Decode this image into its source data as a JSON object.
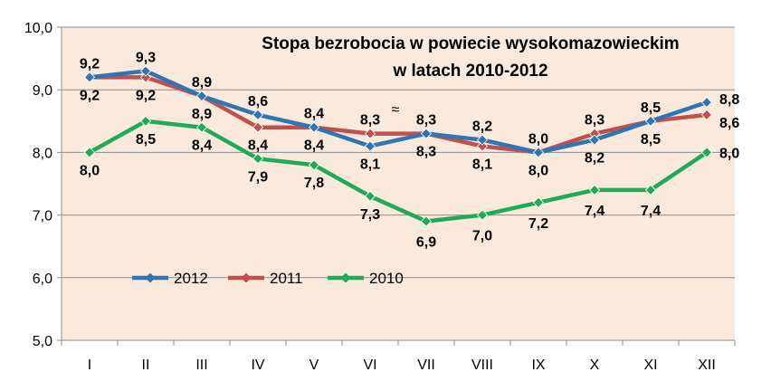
{
  "chart_data": {
    "type": "line",
    "title_lines": [
      "Stopa bezrobocia w powiecie wysokomazowieckim",
      "w latach 2010-2012"
    ],
    "categories": [
      "I",
      "II",
      "III",
      "IV",
      "V",
      "VI",
      "VII",
      "VIII",
      "IX",
      "X",
      "XI",
      "XII"
    ],
    "ylim": [
      5.0,
      10.0
    ],
    "yticks": [
      "5,0",
      "6,0",
      "7,0",
      "8,0",
      "9,0",
      "10,0"
    ],
    "grid": true,
    "legend_position": "bottom-left",
    "series": [
      {
        "name": "2012",
        "color": "#2e75b6",
        "values": [
          9.2,
          9.3,
          8.9,
          8.6,
          8.4,
          8.1,
          8.3,
          8.2,
          8.0,
          8.2,
          8.5,
          8.8
        ],
        "labels": [
          "9,2",
          "9,3",
          "8,9",
          "8,6",
          "8,4",
          "8,1",
          "8,3",
          "8,2",
          "8,0",
          "8,2",
          "8,5",
          "8,8"
        ]
      },
      {
        "name": "2011",
        "color": "#c0504d",
        "values": [
          9.2,
          9.2,
          8.9,
          8.4,
          8.4,
          8.3,
          8.3,
          8.1,
          8.0,
          8.3,
          8.5,
          8.6
        ],
        "labels": [
          "9,2",
          "9,2",
          "8,9",
          "8,4",
          "8,4",
          "8,3",
          "8,3",
          "8,1",
          "8,0",
          "8,3",
          "8,5",
          "8,6"
        ]
      },
      {
        "name": "2010",
        "color": "#1faa59",
        "values": [
          8.0,
          8.5,
          8.4,
          7.9,
          7.8,
          7.3,
          6.9,
          7.0,
          7.2,
          7.4,
          7.4,
          8.0
        ],
        "labels": [
          "8,0",
          "8,5",
          "8,4",
          "7,9",
          "7,8",
          "7,3",
          "6,9",
          "7,0",
          "7,2",
          "7,4",
          "7,4",
          "8,0"
        ]
      }
    ],
    "annotation": "≈",
    "plot_background": "#fbe9dc"
  }
}
